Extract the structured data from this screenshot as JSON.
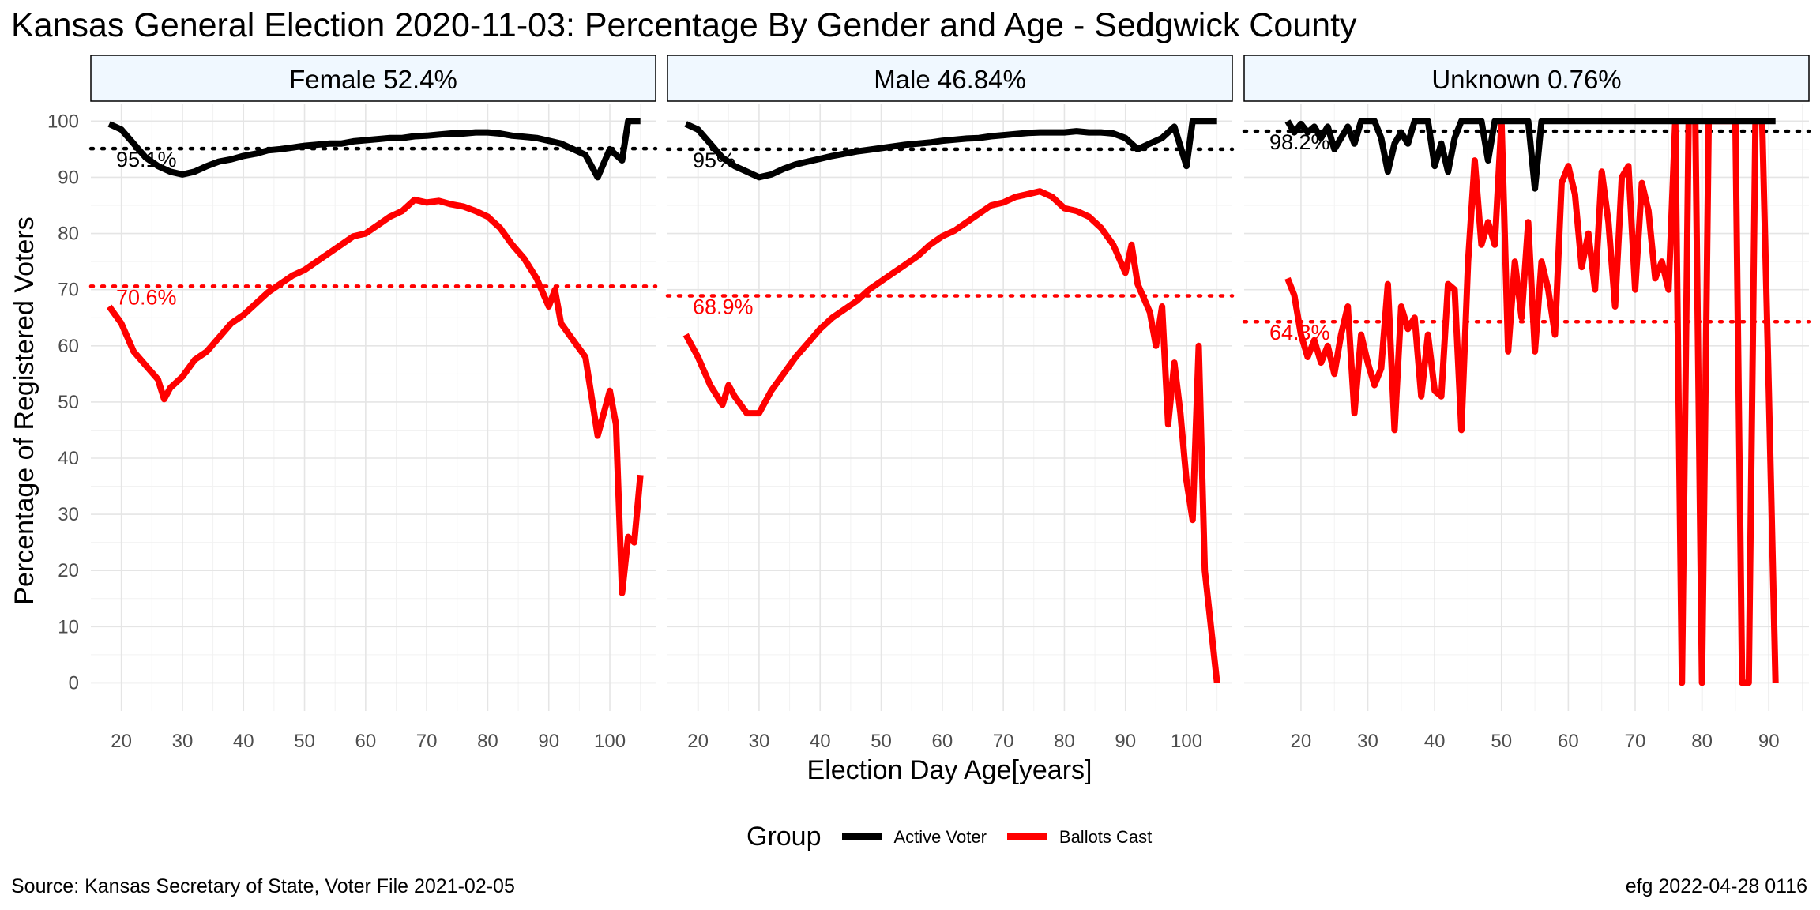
{
  "title": "Kansas General Election 2020-11-03:  Percentage By Gender and Age - Sedgwick County",
  "caption_left": "Source:  Kansas Secretary of State, Voter File  2021-02-05",
  "caption_right": "efg 2022-04-28 0116",
  "legend": {
    "title": "Group",
    "items": [
      {
        "label": "Active Voter",
        "color": "#000000"
      },
      {
        "label": "Ballots Cast",
        "color": "#ff0000"
      }
    ]
  },
  "chart_data": {
    "type": "line",
    "xlabel": "Election Day Age[years]",
    "ylabel": "Percentage of Registered Voters",
    "ylim": [
      -5,
      103
    ],
    "yticks": [
      0,
      10,
      20,
      30,
      40,
      50,
      60,
      70,
      80,
      90,
      100
    ],
    "xticks": [
      20,
      30,
      40,
      50,
      60,
      70,
      80,
      90,
      100
    ],
    "grid": true,
    "legend_position": "bottom",
    "panels": [
      {
        "strip": "Female 52.4%",
        "xlim": [
          15,
          107.5
        ],
        "xticks": [
          20,
          30,
          40,
          50,
          60,
          70,
          80,
          90,
          100
        ],
        "active_mean": 95.1,
        "active_mean_label": "95.1%",
        "ballots_mean": 70.6,
        "ballots_mean_label": "70.6%",
        "active": [
          [
            18,
            99.5
          ],
          [
            20,
            98.5
          ],
          [
            22,
            96
          ],
          [
            24,
            93.5
          ],
          [
            26,
            92
          ],
          [
            28,
            91
          ],
          [
            30,
            90.5
          ],
          [
            32,
            91
          ],
          [
            34,
            92
          ],
          [
            36,
            92.8
          ],
          [
            38,
            93.2
          ],
          [
            40,
            93.8
          ],
          [
            42,
            94.2
          ],
          [
            44,
            94.8
          ],
          [
            46,
            95
          ],
          [
            48,
            95.3
          ],
          [
            50,
            95.6
          ],
          [
            52,
            95.8
          ],
          [
            54,
            96
          ],
          [
            56,
            96
          ],
          [
            58,
            96.4
          ],
          [
            60,
            96.6
          ],
          [
            62,
            96.8
          ],
          [
            64,
            97
          ],
          [
            66,
            97
          ],
          [
            68,
            97.3
          ],
          [
            70,
            97.4
          ],
          [
            72,
            97.6
          ],
          [
            74,
            97.8
          ],
          [
            76,
            97.8
          ],
          [
            78,
            98
          ],
          [
            80,
            98
          ],
          [
            82,
            97.8
          ],
          [
            84,
            97.4
          ],
          [
            86,
            97.2
          ],
          [
            88,
            97
          ],
          [
            90,
            96.5
          ],
          [
            92,
            96
          ],
          [
            94,
            95
          ],
          [
            96,
            94
          ],
          [
            98,
            90
          ],
          [
            100,
            95
          ],
          [
            102,
            93
          ],
          [
            103,
            100
          ],
          [
            105,
            100
          ]
        ],
        "ballots": [
          [
            18,
            67
          ],
          [
            20,
            64
          ],
          [
            22,
            59
          ],
          [
            24,
            56.5
          ],
          [
            26,
            54
          ],
          [
            27,
            50.5
          ],
          [
            28,
            52.5
          ],
          [
            30,
            54.5
          ],
          [
            32,
            57.5
          ],
          [
            34,
            59
          ],
          [
            36,
            61.5
          ],
          [
            38,
            64
          ],
          [
            40,
            65.5
          ],
          [
            42,
            67.5
          ],
          [
            44,
            69.5
          ],
          [
            46,
            71
          ],
          [
            48,
            72.5
          ],
          [
            50,
            73.5
          ],
          [
            52,
            75
          ],
          [
            54,
            76.5
          ],
          [
            56,
            78
          ],
          [
            58,
            79.5
          ],
          [
            60,
            80
          ],
          [
            62,
            81.5
          ],
          [
            64,
            83
          ],
          [
            66,
            84
          ],
          [
            68,
            86
          ],
          [
            70,
            85.5
          ],
          [
            72,
            85.8
          ],
          [
            74,
            85.2
          ],
          [
            76,
            84.8
          ],
          [
            78,
            84
          ],
          [
            80,
            83
          ],
          [
            82,
            81
          ],
          [
            84,
            78
          ],
          [
            86,
            75.5
          ],
          [
            88,
            72
          ],
          [
            90,
            67
          ],
          [
            91,
            70
          ],
          [
            92,
            64
          ],
          [
            94,
            61
          ],
          [
            96,
            58
          ],
          [
            98,
            44
          ],
          [
            100,
            52
          ],
          [
            101,
            46
          ],
          [
            102,
            16
          ],
          [
            103,
            26
          ],
          [
            104,
            25
          ],
          [
            105,
            37
          ]
        ]
      },
      {
        "strip": "Male 46.84%",
        "xlim": [
          15,
          107.5
        ],
        "xticks": [
          20,
          30,
          40,
          50,
          60,
          70,
          80,
          90,
          100
        ],
        "active_mean": 95,
        "active_mean_label": "95%",
        "ballots_mean": 68.9,
        "ballots_mean_label": "68.9%",
        "active": [
          [
            18,
            99.5
          ],
          [
            20,
            98.5
          ],
          [
            22,
            96
          ],
          [
            24,
            93.5
          ],
          [
            26,
            92
          ],
          [
            28,
            91
          ],
          [
            30,
            90
          ],
          [
            32,
            90.5
          ],
          [
            34,
            91.5
          ],
          [
            36,
            92.3
          ],
          [
            38,
            92.8
          ],
          [
            40,
            93.3
          ],
          [
            42,
            93.8
          ],
          [
            44,
            94.2
          ],
          [
            46,
            94.6
          ],
          [
            48,
            94.9
          ],
          [
            50,
            95.2
          ],
          [
            52,
            95.5
          ],
          [
            54,
            95.8
          ],
          [
            56,
            96
          ],
          [
            58,
            96.2
          ],
          [
            60,
            96.5
          ],
          [
            62,
            96.7
          ],
          [
            64,
            96.9
          ],
          [
            66,
            97
          ],
          [
            68,
            97.3
          ],
          [
            70,
            97.5
          ],
          [
            72,
            97.7
          ],
          [
            74,
            97.9
          ],
          [
            76,
            98
          ],
          [
            78,
            98
          ],
          [
            80,
            98
          ],
          [
            82,
            98.2
          ],
          [
            84,
            98
          ],
          [
            86,
            98
          ],
          [
            88,
            97.8
          ],
          [
            90,
            97
          ],
          [
            92,
            95
          ],
          [
            94,
            96
          ],
          [
            96,
            97
          ],
          [
            98,
            99
          ],
          [
            100,
            92
          ],
          [
            101,
            100
          ],
          [
            105,
            100
          ]
        ],
        "ballots": [
          [
            18,
            62
          ],
          [
            20,
            58
          ],
          [
            22,
            53
          ],
          [
            24,
            49.5
          ],
          [
            25,
            53
          ],
          [
            26,
            51
          ],
          [
            28,
            48
          ],
          [
            30,
            48
          ],
          [
            32,
            52
          ],
          [
            34,
            55
          ],
          [
            36,
            58
          ],
          [
            38,
            60.5
          ],
          [
            40,
            63
          ],
          [
            42,
            65
          ],
          [
            44,
            66.5
          ],
          [
            46,
            68
          ],
          [
            48,
            70
          ],
          [
            50,
            71.5
          ],
          [
            52,
            73
          ],
          [
            54,
            74.5
          ],
          [
            56,
            76
          ],
          [
            58,
            78
          ],
          [
            60,
            79.5
          ],
          [
            62,
            80.5
          ],
          [
            64,
            82
          ],
          [
            66,
            83.5
          ],
          [
            68,
            85
          ],
          [
            70,
            85.5
          ],
          [
            72,
            86.5
          ],
          [
            74,
            87
          ],
          [
            76,
            87.5
          ],
          [
            78,
            86.5
          ],
          [
            80,
            84.5
          ],
          [
            82,
            84
          ],
          [
            84,
            83
          ],
          [
            86,
            81
          ],
          [
            88,
            78
          ],
          [
            90,
            73
          ],
          [
            91,
            78
          ],
          [
            92,
            71
          ],
          [
            94,
            66
          ],
          [
            95,
            60
          ],
          [
            96,
            67
          ],
          [
            97,
            46
          ],
          [
            98,
            57
          ],
          [
            99,
            48
          ],
          [
            100,
            36
          ],
          [
            101,
            29
          ],
          [
            102,
            60
          ],
          [
            103,
            20
          ],
          [
            105,
            0
          ]
        ]
      },
      {
        "strip": "Unknown 0.76%",
        "xlim": [
          11.5,
          96
        ],
        "xticks": [
          20,
          30,
          40,
          50,
          60,
          70,
          80,
          90
        ],
        "active_mean": 98.2,
        "active_mean_label": "98.2%",
        "ballots_mean": 64.3,
        "ballots_mean_label": "64.3%",
        "active": [
          [
            18,
            100
          ],
          [
            19,
            98
          ],
          [
            20,
            99.5
          ],
          [
            21,
            98
          ],
          [
            22,
            99
          ],
          [
            23,
            97
          ],
          [
            24,
            99
          ],
          [
            25,
            95
          ],
          [
            26,
            97
          ],
          [
            27,
            99
          ],
          [
            28,
            96
          ],
          [
            29,
            100
          ],
          [
            30,
            100
          ],
          [
            31,
            100
          ],
          [
            32,
            97
          ],
          [
            33,
            91
          ],
          [
            34,
            96
          ],
          [
            35,
            98
          ],
          [
            36,
            96
          ],
          [
            37,
            100
          ],
          [
            38,
            100
          ],
          [
            39,
            100
          ],
          [
            40,
            92
          ],
          [
            41,
            96
          ],
          [
            42,
            91
          ],
          [
            43,
            97
          ],
          [
            44,
            100
          ],
          [
            45,
            100
          ],
          [
            46,
            100
          ],
          [
            47,
            100
          ],
          [
            48,
            93
          ],
          [
            49,
            100
          ],
          [
            50,
            100
          ],
          [
            51,
            100
          ],
          [
            52,
            100
          ],
          [
            53,
            100
          ],
          [
            54,
            100
          ],
          [
            55,
            88
          ],
          [
            56,
            100
          ],
          [
            57,
            100
          ],
          [
            58,
            100
          ],
          [
            60,
            100
          ],
          [
            70,
            100
          ],
          [
            80,
            100
          ],
          [
            91,
            100
          ]
        ],
        "ballots": [
          [
            18,
            72
          ],
          [
            19,
            69
          ],
          [
            20,
            62
          ],
          [
            21,
            58
          ],
          [
            22,
            61
          ],
          [
            23,
            57
          ],
          [
            24,
            60
          ],
          [
            25,
            55
          ],
          [
            26,
            62
          ],
          [
            27,
            67
          ],
          [
            28,
            48
          ],
          [
            29,
            62
          ],
          [
            30,
            57
          ],
          [
            31,
            53
          ],
          [
            32,
            56
          ],
          [
            33,
            71
          ],
          [
            34,
            45
          ],
          [
            35,
            67
          ],
          [
            36,
            63
          ],
          [
            37,
            65
          ],
          [
            38,
            51
          ],
          [
            39,
            62
          ],
          [
            40,
            52
          ],
          [
            41,
            51
          ],
          [
            42,
            71
          ],
          [
            43,
            70
          ],
          [
            44,
            45
          ],
          [
            45,
            75
          ],
          [
            46,
            93
          ],
          [
            47,
            78
          ],
          [
            48,
            82
          ],
          [
            49,
            78
          ],
          [
            50,
            100
          ],
          [
            51,
            59
          ],
          [
            52,
            75
          ],
          [
            53,
            65
          ],
          [
            54,
            82
          ],
          [
            55,
            59
          ],
          [
            56,
            75
          ],
          [
            57,
            70
          ],
          [
            58,
            62
          ],
          [
            59,
            89
          ],
          [
            60,
            92
          ],
          [
            61,
            87
          ],
          [
            62,
            74
          ],
          [
            63,
            80
          ],
          [
            64,
            70
          ],
          [
            65,
            91
          ],
          [
            66,
            82
          ],
          [
            67,
            67
          ],
          [
            68,
            90
          ],
          [
            69,
            92
          ],
          [
            70,
            70
          ],
          [
            71,
            89
          ],
          [
            72,
            84
          ],
          [
            73,
            72
          ],
          [
            74,
            75
          ],
          [
            75,
            70
          ],
          [
            76,
            100
          ],
          [
            77,
            0
          ],
          [
            78,
            100
          ],
          [
            79,
            100
          ],
          [
            80,
            0
          ],
          [
            81,
            100
          ],
          [
            82,
            100
          ],
          [
            83,
            100
          ],
          [
            84,
            100
          ],
          [
            85,
            100
          ],
          [
            86,
            0
          ],
          [
            87,
            0
          ],
          [
            88,
            100
          ],
          [
            89,
            100
          ],
          [
            90,
            52
          ],
          [
            91,
            0
          ]
        ]
      }
    ]
  }
}
